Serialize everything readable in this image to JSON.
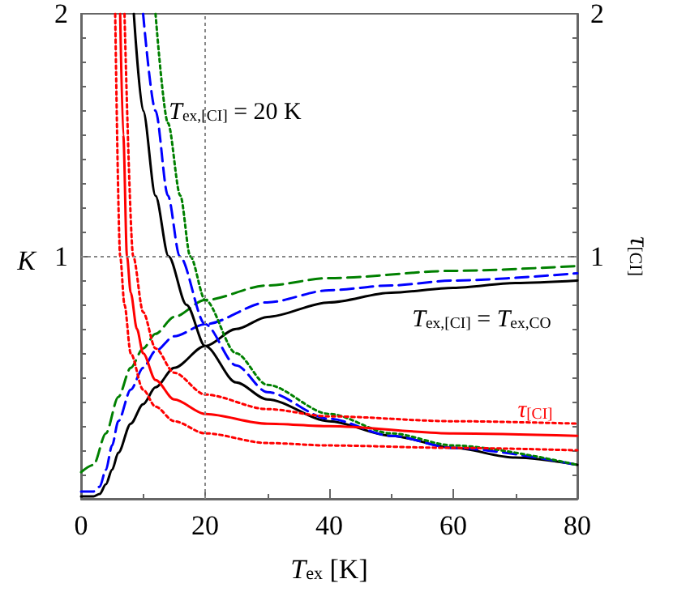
{
  "chart_data": {
    "type": "line",
    "xlabel": "T$_{ex}$ [K]",
    "ylabel": "K",
    "y2label": "τ$_{[CI]}$",
    "xlim": [
      0,
      80
    ],
    "xticks": [
      0,
      20,
      40,
      60,
      80
    ],
    "ylim": [
      0,
      2
    ],
    "yticks": [
      {
        "value": 0,
        "label": null
      },
      1,
      2
    ],
    "y2lim": [
      0,
      2
    ],
    "y2ticks": [
      {
        "value": 0,
        "label": null
      },
      1,
      2
    ],
    "grid": false,
    "marker": "none",
    "series": [
      {
        "color": "#000000",
        "line_style": "solid",
        "x": [
          0,
          2,
          3,
          4,
          5,
          6,
          8,
          10,
          12,
          15,
          20,
          25,
          30,
          40,
          50,
          60,
          70,
          80
        ],
        "values": [
          0.01,
          0.01,
          0.02,
          0.06,
          0.12,
          0.19,
          0.31,
          0.39,
          0.46,
          0.54,
          0.63,
          0.7,
          0.75,
          0.81,
          0.85,
          0.87,
          0.89,
          0.9
        ]
      },
      {
        "color": "#0000ff",
        "line_style": "dashed",
        "x": [
          0,
          2,
          3,
          4,
          5,
          6,
          8,
          10,
          12,
          15,
          20,
          30,
          40,
          50,
          60,
          80
        ],
        "values": [
          0.03,
          0.03,
          0.05,
          0.12,
          0.22,
          0.32,
          0.45,
          0.54,
          0.61,
          0.67,
          0.72,
          0.81,
          0.86,
          0.88,
          0.9,
          0.93
        ]
      },
      {
        "color": "#008000",
        "line_style": "dashed",
        "x": [
          0,
          2,
          4,
          6,
          8,
          10,
          12,
          15,
          20,
          30,
          40,
          60,
          80
        ],
        "values": [
          0.11,
          0.14,
          0.27,
          0.42,
          0.54,
          0.62,
          0.68,
          0.75,
          0.82,
          0.88,
          0.91,
          0.94,
          0.96
        ]
      },
      {
        "color": "#000000",
        "line_style": "solid",
        "x": [
          8.5,
          10,
          12,
          14.1,
          17,
          20,
          25,
          30,
          40,
          50,
          60,
          70,
          80
        ],
        "values": [
          2,
          1.6,
          1.25,
          1,
          0.8,
          0.63,
          0.48,
          0.41,
          0.32,
          0.26,
          0.21,
          0.17,
          0.14
        ]
      },
      {
        "color": "#0000ff",
        "line_style": "dashed",
        "x": [
          10,
          12,
          14,
          15.9,
          20,
          25,
          30,
          40,
          50,
          60,
          80
        ],
        "values": [
          2,
          1.6,
          1.25,
          1,
          0.72,
          0.55,
          0.44,
          0.33,
          0.26,
          0.21,
          0.14
        ]
      },
      {
        "color": "#008000",
        "line_style": "dotted",
        "x": [
          12,
          14,
          16,
          17.6,
          20,
          25,
          30,
          40,
          50,
          60,
          80
        ],
        "values": [
          2,
          1.55,
          1.25,
          1,
          0.82,
          0.6,
          0.47,
          0.35,
          0.27,
          0.22,
          0.14
        ]
      },
      {
        "color": "#ff0000",
        "line_style": "solid",
        "x": [
          6.3,
          6.8,
          7.4,
          8,
          9,
          10,
          12,
          15,
          20,
          30,
          40,
          60,
          80
        ],
        "values": [
          2,
          1.5,
          1,
          0.85,
          0.7,
          0.6,
          0.49,
          0.41,
          0.35,
          0.31,
          0.3,
          0.27,
          0.26
        ]
      },
      {
        "color": "#ff0000",
        "line_style": "dotted",
        "x": [
          7,
          8.4,
          10,
          12,
          15,
          20,
          30,
          40,
          60,
          80
        ],
        "values": [
          2,
          1,
          0.77,
          0.62,
          0.52,
          0.43,
          0.37,
          0.34,
          0.32,
          0.31
        ]
      },
      {
        "color": "#ff0000",
        "line_style": "dotted",
        "x": [
          5.5,
          6.3,
          7,
          8,
          10,
          12,
          15,
          20,
          30,
          40,
          60,
          80
        ],
        "values": [
          2,
          1,
          0.8,
          0.6,
          0.45,
          0.38,
          0.32,
          0.27,
          0.23,
          0.22,
          0.21,
          0.2
        ]
      }
    ],
    "ref_lines": [
      {
        "axis": "y",
        "value": 1,
        "color": "#888888",
        "line_style": "dotted"
      },
      {
        "axis": "x",
        "value": 20,
        "color": "#888888",
        "line_style": "dotted"
      }
    ],
    "annotations": [
      "T$_{ex,[CI]}$ = 20 K",
      "T$_{ex,[CI]}$ = T$_{ex,CO}$",
      "τ$_{[CI]}$"
    ]
  }
}
